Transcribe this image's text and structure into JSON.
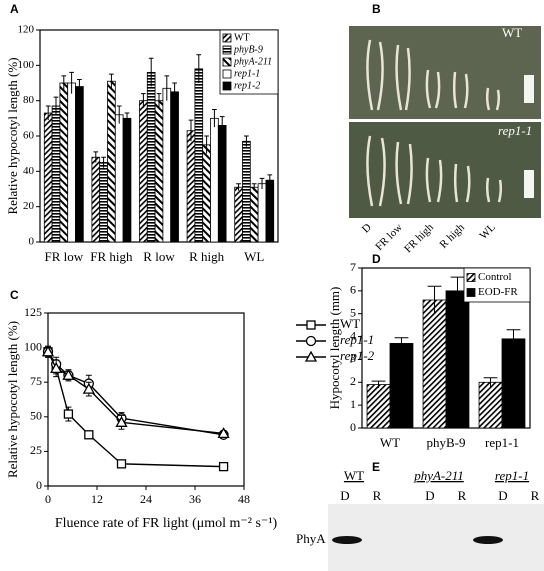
{
  "chart_data": [
    {
      "type": "bar",
      "label": "A",
      "ylabel": "Relative hypocotyl length (%)",
      "categories": [
        "FR low",
        "FR high",
        "R low",
        "R high",
        "WL"
      ],
      "series": [
        {
          "name": "WT",
          "color": "#000000",
          "pattern": "diag",
          "values": [
            73,
            48,
            80,
            63,
            31
          ],
          "errors": [
            4,
            3,
            4,
            6,
            2
          ]
        },
        {
          "name": "phyB-9",
          "color": "#000000",
          "pattern": "hstripe",
          "values": [
            77,
            45,
            96,
            98,
            57
          ],
          "errors": [
            5,
            3,
            8,
            8,
            3
          ]
        },
        {
          "name": "phyA-211",
          "color": "#000000",
          "pattern": "diagwide",
          "values": [
            90,
            91,
            80,
            55,
            31
          ],
          "errors": [
            4,
            4,
            4,
            5,
            2
          ]
        },
        {
          "name": "rep1-1",
          "color": "#ffffff",
          "values": [
            90,
            72,
            87,
            70,
            33
          ],
          "errors": [
            6,
            5,
            7,
            5,
            3
          ]
        },
        {
          "name": "rep1-2",
          "color": "#000000",
          "values": [
            88,
            70,
            85,
            66,
            35
          ],
          "errors": [
            4,
            3,
            5,
            5,
            3
          ]
        }
      ],
      "ylim": [
        0,
        120
      ],
      "yticks": [
        0,
        20,
        40,
        60,
        80,
        100,
        120
      ],
      "legend": "upper right"
    },
    {
      "type": "line",
      "label": "C",
      "ylabel": "Relative hypocotyl length (%)",
      "xlabel": "Fluence rate of FR light (μmol m⁻² s⁻¹)",
      "x": [
        0,
        2,
        5,
        10,
        18,
        43
      ],
      "series": [
        {
          "name": "WT",
          "color": "#000000",
          "marker": "square",
          "values": [
            97,
            85,
            52,
            37,
            16,
            14
          ],
          "errors": [
            3,
            4,
            5,
            2,
            2,
            1
          ]
        },
        {
          "name": "rep1-1",
          "color": "#000000",
          "marker": "circle",
          "values": [
            97,
            88,
            80,
            74,
            49,
            37
          ],
          "errors": [
            4,
            5,
            3,
            6,
            4,
            2
          ]
        },
        {
          "name": "rep1-2",
          "color": "#000000",
          "marker": "triangle",
          "values": [
            97,
            85,
            80,
            70,
            46,
            38
          ],
          "errors": [
            4,
            6,
            4,
            5,
            5,
            2
          ]
        }
      ],
      "xlim": [
        0,
        48
      ],
      "xticks": [
        0,
        12,
        24,
        36,
        48
      ],
      "ylim": [
        0,
        125
      ],
      "yticks": [
        0,
        25,
        50,
        75,
        100,
        125
      ],
      "legend": "right"
    },
    {
      "type": "bar",
      "label": "D",
      "ylabel": "Hypocotyl length (mm)",
      "categories": [
        "WT",
        "phyB-9",
        "rep1-1"
      ],
      "series": [
        {
          "name": "Control",
          "color": "#000000",
          "pattern": "diag",
          "values": [
            1.9,
            5.6,
            2.0
          ],
          "errors": [
            0.15,
            0.6,
            0.2
          ]
        },
        {
          "name": "EOD-FR",
          "color": "#000000",
          "values": [
            3.7,
            6.0,
            3.9
          ],
          "errors": [
            0.25,
            0.6,
            0.4
          ]
        }
      ],
      "ylim": [
        0,
        7
      ],
      "yticks": [
        0,
        1,
        2,
        3,
        4,
        5,
        6,
        7
      ],
      "legend": "upper right"
    }
  ],
  "photo": {
    "label": "B",
    "top": "WT",
    "bottom": "rep1-1",
    "conditions": [
      "D",
      "FR low",
      "FR high",
      "R high",
      "WL"
    ]
  },
  "blot": {
    "label": "E",
    "lanes": [
      "WT",
      "phyA-211",
      "rep1-1"
    ],
    "sub": [
      "D",
      "R"
    ],
    "band": "PhyA"
  }
}
